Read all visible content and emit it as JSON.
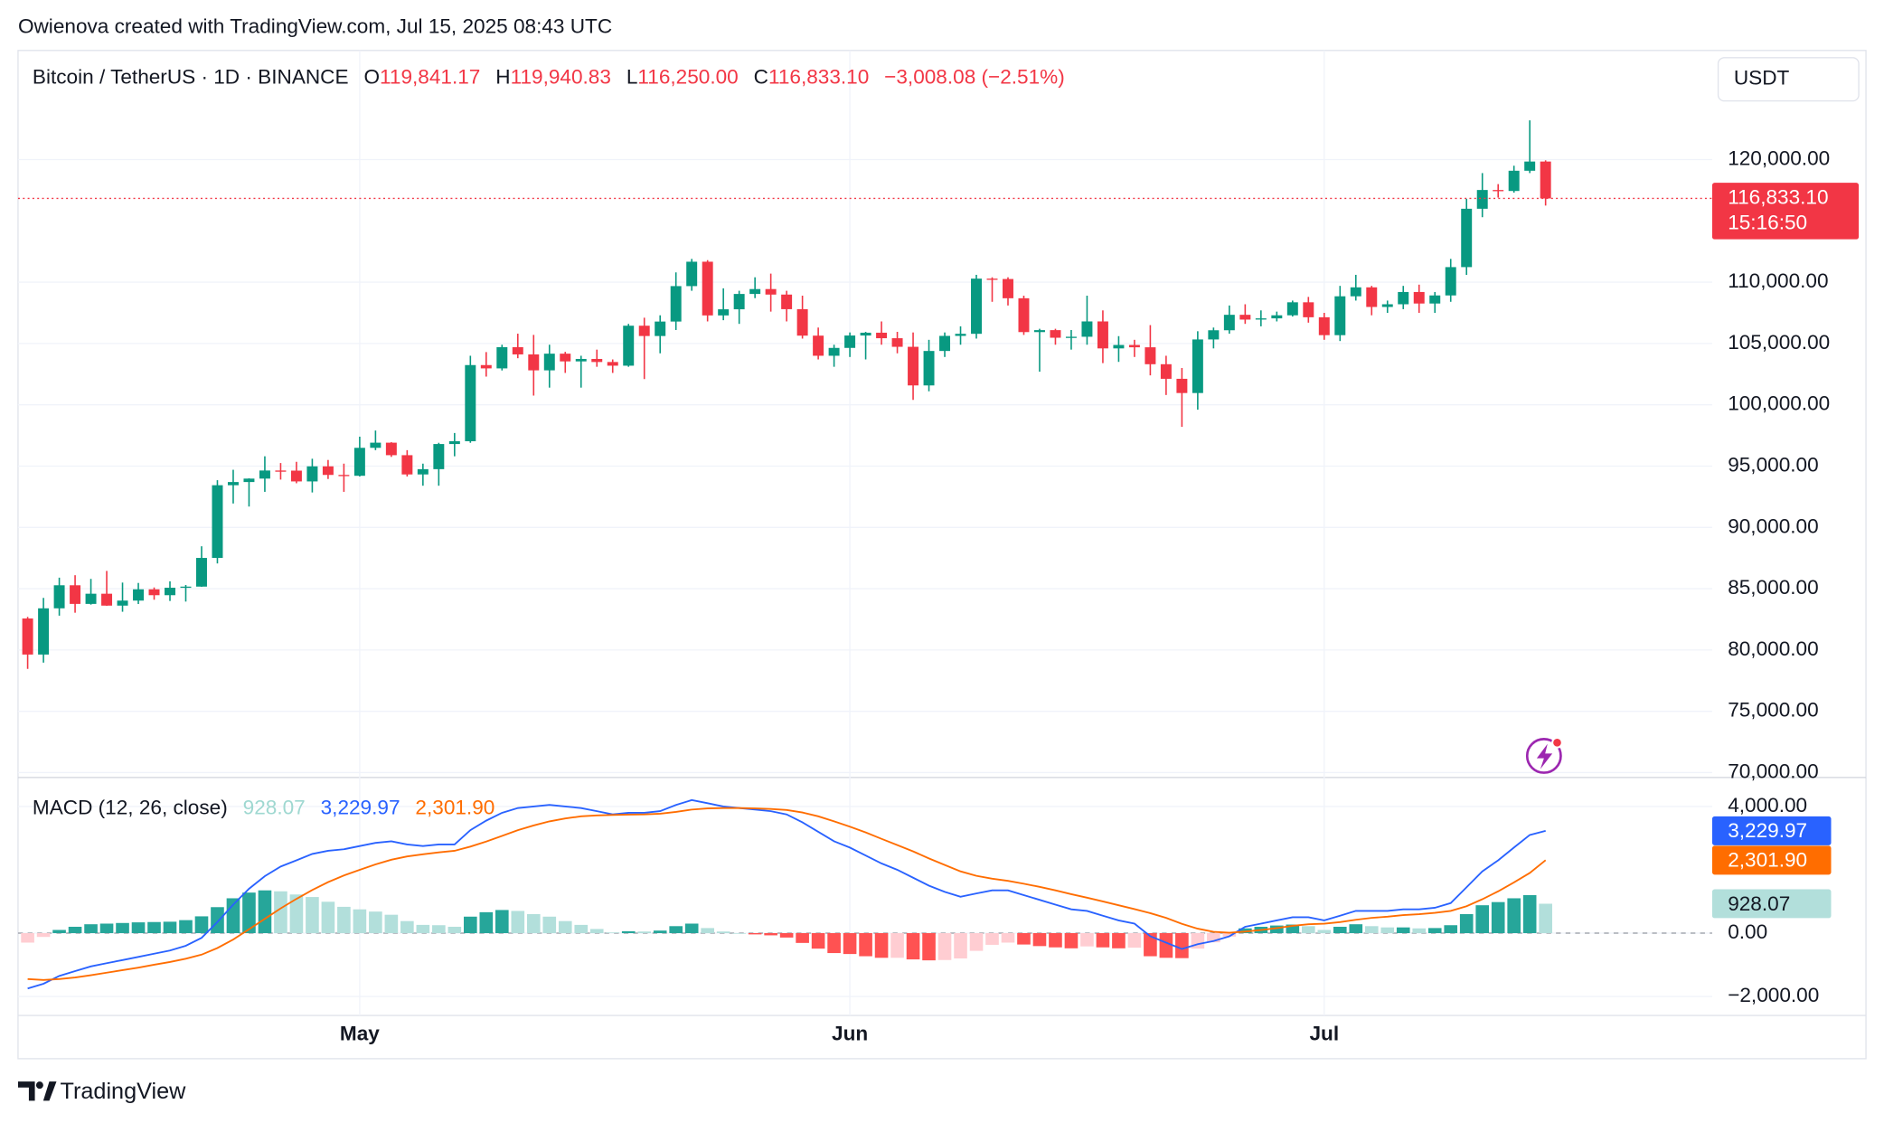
{
  "attribution": "Owienova created with TradingView.com, Jul 15, 2025 08:43 UTC",
  "footer": {
    "brand": "TradingView"
  },
  "chart_data": {
    "type": "candlestick",
    "header": {
      "symbol": "Bitcoin / TetherUS · 1D · BINANCE",
      "ohlc": [
        {
          "key": "O",
          "value": "119,841.17"
        },
        {
          "key": "H",
          "value": "119,940.83"
        },
        {
          "key": "L",
          "value": "116,250.00"
        },
        {
          "key": "C",
          "value": "116,833.10"
        }
      ],
      "change": "−3,008.08 (−2.51%)"
    },
    "currency": "USDT",
    "last_price": {
      "label": "116,833.10",
      "countdown": "15:16:50"
    },
    "colors": {
      "up": "#089981",
      "down": "#f23645"
    },
    "categories": [
      null,
      null,
      null,
      null,
      null,
      null,
      null,
      null,
      null,
      null,
      null,
      null,
      null,
      null,
      null,
      null,
      null,
      null,
      null,
      null,
      null,
      "May",
      null,
      null,
      null,
      null,
      null,
      null,
      null,
      null,
      null,
      null,
      null,
      null,
      null,
      null,
      null,
      null,
      null,
      null,
      null,
      null,
      null,
      null,
      null,
      null,
      null,
      null,
      null,
      null,
      null,
      null,
      "Jun",
      null,
      null,
      null,
      null,
      null,
      null,
      null,
      null,
      null,
      null,
      null,
      null,
      null,
      null,
      null,
      null,
      null,
      null,
      null,
      null,
      null,
      null,
      null,
      null,
      null,
      null,
      null,
      null,
      null,
      "Jul",
      null,
      null,
      null,
      null,
      null,
      null,
      null,
      null,
      null,
      null,
      null,
      null,
      null,
      null
    ],
    "open": [
      82570,
      79630,
      83400,
      85280,
      83760,
      84590,
      83620,
      84030,
      84950,
      84470,
      85080,
      85170,
      87510,
      93440,
      93700,
      93980,
      94640,
      94630,
      93750,
      94980,
      94280,
      94210,
      96490,
      96910,
      95890,
      94320,
      94750,
      96800,
      97030,
      103240,
      102970,
      104700,
      104110,
      102810,
      104170,
      103540,
      103740,
      103490,
      103190,
      106450,
      105610,
      106790,
      109680,
      111670,
      107290,
      107790,
      109040,
      109440,
      108990,
      107800,
      105640,
      104000,
      104640,
      105650,
      105880,
      105430,
      104730,
      101580,
      104390,
      105620,
      105790,
      110290,
      110260,
      108690,
      105930,
      106090,
      105470,
      105550,
      106800,
      104600,
      104880,
      104690,
      103310,
      102120,
      100960,
      105330,
      106080,
      107340,
      106950,
      107050,
      107300,
      108360,
      107140,
      105680,
      108850,
      109580,
      107980,
      108200,
      109200,
      108260,
      108920,
      111230,
      115990,
      117520,
      117440,
      119090,
      119841.17
    ],
    "high": [
      82700,
      84250,
      85900,
      86100,
      85800,
      86450,
      85500,
      85470,
      85100,
      85600,
      85300,
      88460,
      93850,
      94700,
      94000,
      95800,
      95250,
      95350,
      95600,
      95500,
      95200,
      97400,
      97900,
      96950,
      96300,
      95200,
      96900,
      97700,
      104000,
      104300,
      104900,
      105800,
      105700,
      104900,
      104320,
      104000,
      104500,
      103700,
      106600,
      107100,
      107300,
      110800,
      111900,
      111800,
      109500,
      109300,
      110400,
      110700,
      109300,
      108900,
      106300,
      104900,
      105900,
      105950,
      106800,
      105950,
      105900,
      105300,
      105900,
      106400,
      110600,
      110400,
      110400,
      108900,
      106200,
      106200,
      106100,
      108900,
      107700,
      105600,
      105300,
      106500,
      104000,
      103000,
      106000,
      106300,
      108100,
      108200,
      107700,
      107600,
      108500,
      108800,
      107500,
      109700,
      110600,
      109700,
      108500,
      109700,
      109800,
      109200,
      111900,
      116800,
      118900,
      118000,
      119500,
      123200,
      119940.83
    ],
    "low": [
      78460,
      78970,
      82800,
      83040,
      83700,
      83600,
      83120,
      83750,
      84100,
      84000,
      83950,
      85150,
      87060,
      91950,
      91700,
      92900,
      93900,
      93600,
      92850,
      93950,
      92900,
      94150,
      96300,
      95750,
      94150,
      93400,
      93400,
      95800,
      96900,
      102300,
      102800,
      103800,
      100750,
      101400,
      102600,
      101400,
      103100,
      102600,
      103100,
      102100,
      104200,
      106100,
      109300,
      106800,
      106900,
      106600,
      108700,
      107600,
      106800,
      105400,
      103700,
      103100,
      103900,
      103700,
      104900,
      104200,
      100400,
      101100,
      103900,
      104900,
      105400,
      108400,
      108100,
      105700,
      102700,
      104900,
      104500,
      104900,
      103400,
      103500,
      103900,
      102400,
      100800,
      98200,
      99600,
      104600,
      105800,
      106600,
      106400,
      106800,
      107200,
      106700,
      105300,
      105200,
      108500,
      107300,
      107500,
      107800,
      107500,
      107500,
      108400,
      110600,
      115300,
      116900,
      117300,
      118900,
      116250
    ],
    "close": [
      79630,
      83400,
      85280,
      83760,
      84590,
      83620,
      84030,
      84950,
      84470,
      85080,
      85170,
      87510,
      93440,
      93700,
      93980,
      94640,
      94630,
      93750,
      94980,
      94280,
      94210,
      96490,
      96910,
      95890,
      94320,
      94750,
      96800,
      97030,
      103240,
      102970,
      104700,
      104110,
      102810,
      104170,
      103540,
      103740,
      103490,
      103190,
      106450,
      105610,
      106790,
      109680,
      111670,
      107290,
      107790,
      109040,
      109440,
      108990,
      107800,
      105640,
      104000,
      104640,
      105650,
      105880,
      105430,
      104730,
      101580,
      104390,
      105620,
      105790,
      110290,
      110260,
      108690,
      105930,
      106090,
      105470,
      105550,
      106800,
      104600,
      104880,
      104690,
      103310,
      102120,
      100960,
      105330,
      106080,
      107340,
      106950,
      107050,
      107300,
      108360,
      107140,
      105680,
      108850,
      109580,
      107980,
      108200,
      109200,
      108260,
      108920,
      111230,
      115990,
      117520,
      117440,
      119090,
      119841.17,
      116833.1
    ],
    "ylim": [
      69600,
      128900
    ],
    "yticks": [
      {
        "value": 70000,
        "label": "70,000.00"
      },
      {
        "value": 75000,
        "label": "75,000.00"
      },
      {
        "value": 80000,
        "label": "80,000.00"
      },
      {
        "value": 85000,
        "label": "85,000.00"
      },
      {
        "value": 90000,
        "label": "90,000.00"
      },
      {
        "value": 95000,
        "label": "95,000.00"
      },
      {
        "value": 100000,
        "label": "100,000.00"
      },
      {
        "value": 105000,
        "label": "105,000.00"
      },
      {
        "value": 110000,
        "label": "110,000.00"
      },
      {
        "value": 120000,
        "label": "120,000.00"
      }
    ],
    "grid": true,
    "indicator": {
      "type": "macd",
      "title": "MACD (12, 26, close)",
      "ylim": [
        -2600,
        4800
      ],
      "yticks": [
        {
          "value": 4000,
          "label": "4,000.00"
        },
        {
          "value": 0,
          "label": "0.00"
        },
        {
          "value": -2000,
          "label": "−2,000.00"
        }
      ],
      "histogram": {
        "last_label": "928.07",
        "colors": {
          "pos_rising": "#26a69a",
          "pos_falling": "#b2dfdb",
          "neg_rising": "#ffcdd2",
          "neg_falling": "#ff5252"
        },
        "values": [
          -300,
          -120,
          100,
          200,
          280,
          300,
          320,
          340,
          350,
          360,
          410,
          530,
          820,
          1100,
          1280,
          1350,
          1320,
          1220,
          1140,
          990,
          830,
          750,
          680,
          580,
          380,
          260,
          250,
          200,
          520,
          660,
          730,
          700,
          600,
          520,
          380,
          260,
          130,
          20,
          60,
          50,
          80,
          220,
          300,
          160,
          50,
          0,
          -40,
          -70,
          -140,
          -310,
          -490,
          -630,
          -660,
          -730,
          -780,
          -780,
          -830,
          -860,
          -850,
          -800,
          -560,
          -370,
          -300,
          -360,
          -410,
          -450,
          -480,
          -420,
          -450,
          -480,
          -460,
          -730,
          -780,
          -790,
          -490,
          -290,
          -110,
          150,
          200,
          240,
          270,
          220,
          100,
          200,
          280,
          220,
          180,
          180,
          150,
          160,
          250,
          600,
          880,
          980,
          1100,
          1200,
          928.07
        ]
      },
      "series": [
        {
          "color": "#2962ff",
          "last_label": "3,229.97",
          "values": [
            -1750,
            -1600,
            -1350,
            -1200,
            -1050,
            -950,
            -850,
            -750,
            -650,
            -550,
            -400,
            -150,
            350,
            900,
            1400,
            1800,
            2100,
            2300,
            2500,
            2600,
            2650,
            2750,
            2850,
            2900,
            2800,
            2750,
            2800,
            2800,
            3250,
            3550,
            3800,
            3950,
            4000,
            4050,
            4000,
            3950,
            3850,
            3750,
            3800,
            3800,
            3850,
            4050,
            4200,
            4100,
            4000,
            3950,
            3900,
            3850,
            3750,
            3500,
            3200,
            2900,
            2700,
            2450,
            2200,
            2000,
            1750,
            1500,
            1300,
            1150,
            1250,
            1350,
            1350,
            1200,
            1050,
            900,
            750,
            700,
            550,
            400,
            300,
            -100,
            -300,
            -500,
            -350,
            -250,
            -100,
            200,
            300,
            400,
            500,
            500,
            400,
            550,
            700,
            700,
            700,
            750,
            750,
            800,
            950,
            1450,
            1950,
            2300,
            2700,
            3100,
            3229.97
          ]
        },
        {
          "color": "#ff6d00",
          "last_label": "2,301.90",
          "values": [
            -1450,
            -1480,
            -1450,
            -1400,
            -1330,
            -1250,
            -1170,
            -1090,
            -1000,
            -910,
            -810,
            -680,
            -470,
            -200,
            120,
            450,
            780,
            1080,
            1360,
            1610,
            1820,
            2000,
            2170,
            2320,
            2420,
            2490,
            2550,
            2600,
            2730,
            2890,
            3070,
            3250,
            3400,
            3530,
            3620,
            3690,
            3720,
            3730,
            3740,
            3750,
            3770,
            3830,
            3900,
            3940,
            3950,
            3950,
            3940,
            3920,
            3890,
            3810,
            3690,
            3530,
            3360,
            3180,
            2980,
            2780,
            2580,
            2360,
            2150,
            1950,
            1810,
            1720,
            1650,
            1560,
            1460,
            1350,
            1230,
            1120,
            1000,
            880,
            760,
            630,
            480,
            290,
            140,
            40,
            10,
            50,
            100,
            160,
            230,
            280,
            300,
            350,
            420,
            480,
            520,
            570,
            600,
            640,
            700,
            850,
            1070,
            1320,
            1600,
            1900,
            2301.9
          ]
        }
      ]
    }
  }
}
